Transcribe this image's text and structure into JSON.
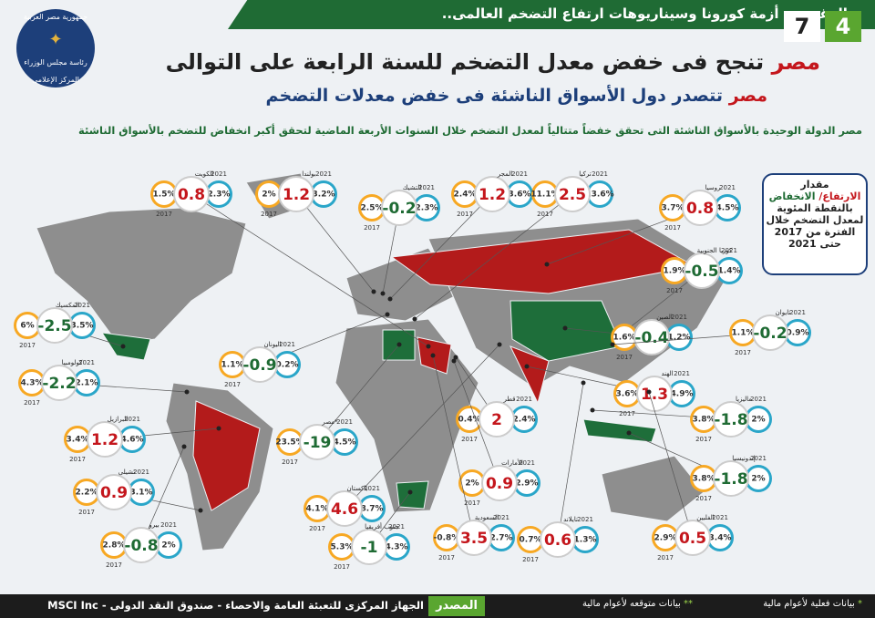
{
  "header": {
    "ribbon": "بالرغم من أزمة كورونا وسيناريوهات ارتفاع التضخم العالمى..",
    "issue_a": "4",
    "issue_b": "7",
    "logo": [
      "جمهورية مصر العربية",
      "رئاسة مجلس الوزراء",
      "المركز الإعلامى"
    ],
    "title_highlight": "مصر",
    "title_rest": "تنجح فى خفض معدل التضخم للسنة الرابعة على التوالى",
    "subtitle_highlight": "مصر",
    "subtitle_rest": "تتصدر دول الأسواق الناشئة فى خفض معدلات التضخم",
    "intro": "مصر الدولة الوحيدة بالأسواق الناشئة التى تحقق خفضاً متتالياً لمعدل التضخم خلال السنوات الأربعة الماضية لتحقق أكبر انخفاض للتضخم بالأسواق الناشئة"
  },
  "legend_box": {
    "line1": "مقدار",
    "rise": "الارتفاع/",
    "fall": "الانخفاض",
    "line3": "بالنقطة المئوية لمعدل التضخم خلال الفترة من 2017 حتى 2021"
  },
  "years": {
    "start": "2017",
    "end": "2021"
  },
  "countries": [
    {
      "name": "الكويت",
      "v2017": "1.5%",
      "v2021": "2.3%",
      "change": 0.8
    },
    {
      "name": "بولندا",
      "v2017": "2%",
      "v2021": "3.2%",
      "change": 1.2
    },
    {
      "name": "التشيك",
      "v2017": "2.5%",
      "v2021": "2.3%",
      "change": -0.2
    },
    {
      "name": "المجر",
      "v2017": "2.4%",
      "v2021": "3.6%",
      "change": 1.2
    },
    {
      "name": "تركيا",
      "v2017": "11.1%",
      "v2021": "13.6%",
      "change": 2.5
    },
    {
      "name": "روسيا",
      "v2017": "3.7%",
      "v2021": "4.5%",
      "change": 0.8
    },
    {
      "name": "كوريا الجنوبية",
      "v2017": "1.9%",
      "v2021": "1.4%",
      "change": -0.5
    },
    {
      "name": "المكسيك",
      "v2017": "6%",
      "v2021": "3.5%",
      "change": -2.5
    },
    {
      "name": "كولومبيا",
      "v2017": "4.3%",
      "v2021": "2.1%",
      "change": -2.2
    },
    {
      "name": "اليونان",
      "v2017": "1.1%",
      "v2021": "0.2%",
      "change": -0.9
    },
    {
      "name": "الصين",
      "v2017": "1.6%",
      "v2021": "1.2%",
      "change": -0.4
    },
    {
      "name": "تايوان",
      "v2017": "1.1%",
      "v2021": "0.9%",
      "change": -0.2
    },
    {
      "name": "الهند",
      "v2017": "3.6%",
      "v2021": "4.9%",
      "change": 1.3
    },
    {
      "name": "ماليزيا",
      "v2017": "3.8%",
      "v2021": "2%",
      "change": -1.8
    },
    {
      "name": "البرازيل",
      "v2017": "3.4%",
      "v2021": "4.6%",
      "change": 1.2
    },
    {
      "name": "مصر*",
      "v2017": "23.5%",
      "v2021": "4.5%",
      "change": -19
    },
    {
      "name": "قطر",
      "v2017": "0.4%",
      "v2021": "2.4%",
      "change": 2
    },
    {
      "name": "تشيلى",
      "v2017": "2.2%",
      "v2021": "3.1%",
      "change": 0.9
    },
    {
      "name": "الأمارات",
      "v2017": "2%",
      "v2021": "2.9%",
      "change": 0.9
    },
    {
      "name": "إندونيسيا",
      "v2017": "3.8%",
      "v2021": "2%",
      "change": -1.8
    },
    {
      "name": "باكستان",
      "v2017": "4.1%",
      "v2021": "8.7%",
      "change": 4.6
    },
    {
      "name": "بيرو",
      "v2017": "2.8%",
      "v2021": "2%",
      "change": -0.8
    },
    {
      "name": "جنوب أفريقيا",
      "v2017": "5.3%",
      "v2021": "4.3%",
      "change": -1
    },
    {
      "name": "السعودية",
      "v2017": "-0.8%",
      "v2021": "2.7%",
      "change": 3.5
    },
    {
      "name": "تايلاند",
      "v2017": "0.7%",
      "v2021": "1.3%",
      "change": 0.6
    },
    {
      "name": "الفلبين",
      "v2017": "2.9%",
      "v2021": "3.4%",
      "change": 0.5
    }
  ],
  "footer": {
    "source_label": "المصدر",
    "source": "الجهاز المركزى للتعبئة العامة والاحصاء - صندوق النقد الدولى - MSCI Inc",
    "note1_mark": "*",
    "note1": "بيانات فعلية لأعوام مالية",
    "note2_mark": "**",
    "note2": "بيانات متوقعه لأعوام مالية"
  }
}
